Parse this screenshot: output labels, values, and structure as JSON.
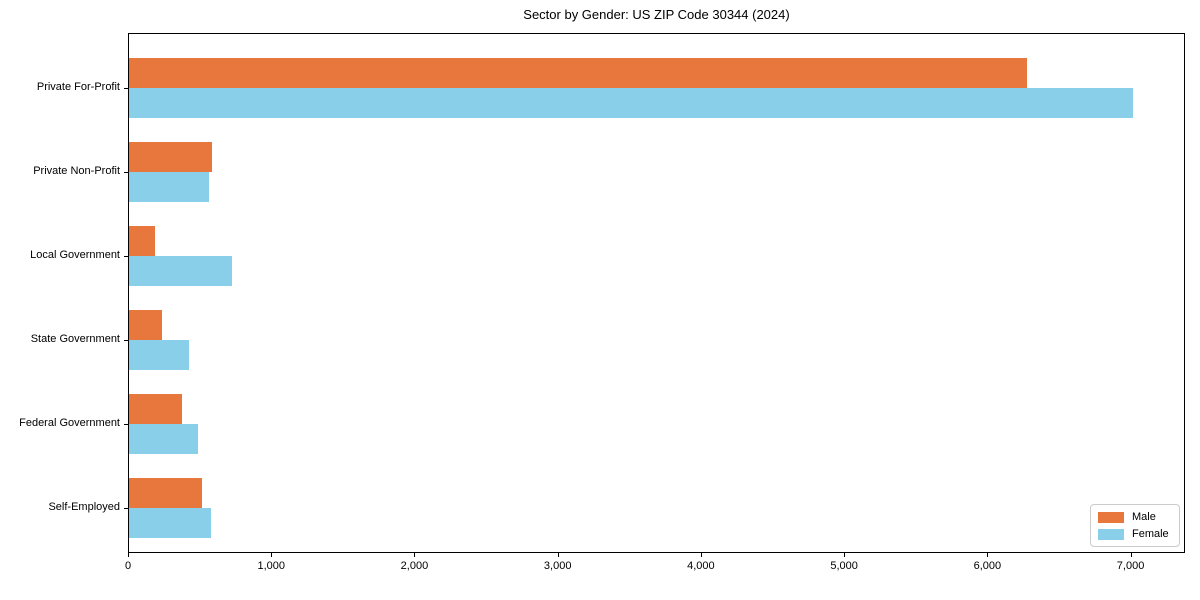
{
  "chart_data": {
    "type": "bar",
    "orientation": "horizontal",
    "title": "Sector by Gender: US ZIP Code 30344 (2024)",
    "categories": [
      "Private For-Profit",
      "Private Non-Profit",
      "Local Government",
      "State Government",
      "Federal Government",
      "Self-Employed"
    ],
    "series": [
      {
        "name": "Male",
        "color": "#e8773d",
        "values": [
          6280,
          585,
          190,
          235,
          380,
          520
        ]
      },
      {
        "name": "Female",
        "color": "#89cfea",
        "values": [
          7020,
          565,
          725,
          425,
          490,
          580
        ]
      }
    ],
    "xlabel": "",
    "ylabel": "",
    "xlim": [
      0,
      7380
    ],
    "x_ticks": [
      0,
      1000,
      2000,
      3000,
      4000,
      5000,
      6000,
      7000
    ],
    "x_tick_labels": [
      "0",
      "1,000",
      "2,000",
      "3,000",
      "4,000",
      "5,000",
      "6,000",
      "7,000"
    ],
    "grid": false,
    "legend_position": "lower right"
  }
}
